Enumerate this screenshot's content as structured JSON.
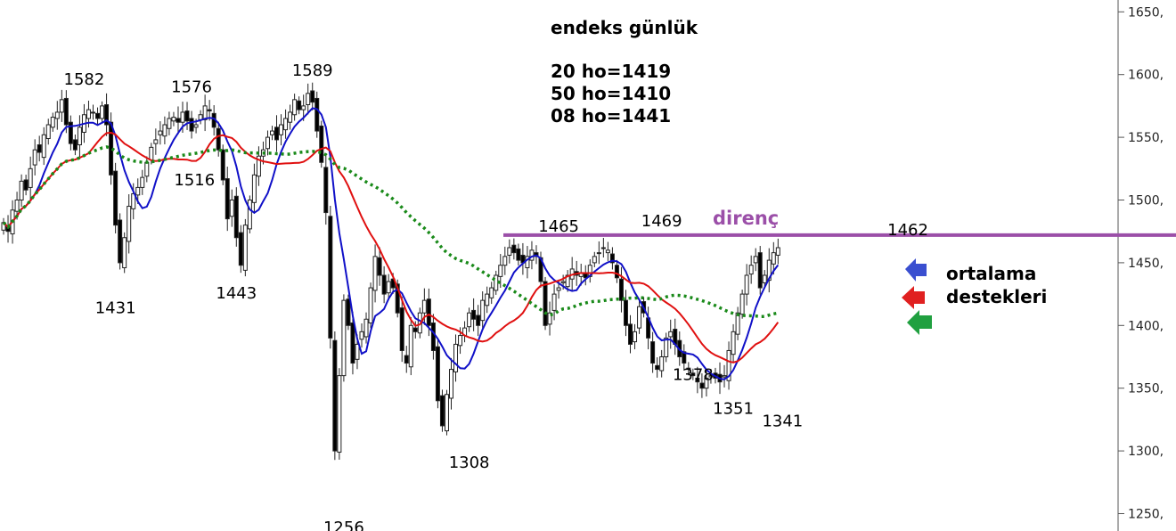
{
  "chart_data": {
    "type": "candlestick",
    "title": "endeks günlük",
    "info_lines": [
      "20 ho=1419",
      "50 ho=1410",
      "08 ho=1441"
    ],
    "ylim": [
      1244,
      1662
    ],
    "y_ticks": [
      1250,
      1300,
      1350,
      1400,
      1450,
      1500,
      1550,
      1600,
      1650
    ],
    "y_tick_labels": [
      "1250,",
      "1300,",
      "1350,",
      "1400,",
      "1450,",
      "1500,",
      "1550,",
      "1600,",
      "1650,"
    ],
    "resistance": {
      "label": "direnç",
      "value": 1472,
      "color": "#9b4fa8"
    },
    "support_label": [
      "ortalama",
      "destekleri"
    ],
    "annotations": [
      {
        "text": "1582",
        "x": 18,
        "y": 1582,
        "pos": "above"
      },
      {
        "text": "1576",
        "x": 42,
        "y": 1576,
        "pos": "above"
      },
      {
        "text": "1589",
        "x": 69,
        "y": 1589,
        "pos": "above"
      },
      {
        "text": "1516",
        "x": 48,
        "y": 1516,
        "pos": "left"
      },
      {
        "text": "1431",
        "x": 25,
        "y": 1431,
        "pos": "below"
      },
      {
        "text": "1443",
        "x": 52,
        "y": 1443,
        "pos": "below"
      },
      {
        "text": "1256",
        "x": 76,
        "y": 1256,
        "pos": "below"
      },
      {
        "text": "1308",
        "x": 104,
        "y": 1308,
        "pos": "below"
      },
      {
        "text": "1465",
        "x": 124,
        "y": 1465,
        "pos": "above"
      },
      {
        "text": "1469",
        "x": 147,
        "y": 1469,
        "pos": "above"
      },
      {
        "text": "1378",
        "x": 154,
        "y": 1378,
        "pos": "below"
      },
      {
        "text": "1351",
        "x": 163,
        "y": 1351,
        "pos": "below"
      },
      {
        "text": "1341",
        "x": 174,
        "y": 1341,
        "pos": "below"
      },
      {
        "text": "1462",
        "x": 202,
        "y": 1462,
        "pos": "above"
      }
    ],
    "series": [
      {
        "name": "08 ho",
        "color": "#1010c8",
        "style": "solid"
      },
      {
        "name": "20 ho",
        "color": "#e01010",
        "style": "solid"
      },
      {
        "name": "50 ho",
        "color": "#1a8a1a",
        "style": "dotted"
      }
    ],
    "arrow_colors": [
      "#3a4fd0",
      "#e02020",
      "#20a040"
    ],
    "close": [
      1482,
      1475,
      1492,
      1500,
      1515,
      1508,
      1525,
      1540,
      1538,
      1552,
      1560,
      1566,
      1570,
      1580,
      1560,
      1545,
      1540,
      1558,
      1568,
      1572,
      1570,
      1565,
      1575,
      1560,
      1520,
      1480,
      1450,
      1470,
      1495,
      1505,
      1510,
      1518,
      1530,
      1542,
      1548,
      1555,
      1560,
      1565,
      1566,
      1562,
      1570,
      1563,
      1555,
      1560,
      1568,
      1575,
      1571,
      1558,
      1540,
      1516,
      1485,
      1500,
      1470,
      1448,
      1480,
      1500,
      1520,
      1535,
      1540,
      1550,
      1555,
      1548,
      1560,
      1565,
      1570,
      1580,
      1572,
      1575,
      1585,
      1578,
      1555,
      1530,
      1490,
      1390,
      1300,
      1360,
      1420,
      1400,
      1370,
      1385,
      1395,
      1405,
      1430,
      1455,
      1440,
      1425,
      1435,
      1430,
      1410,
      1380,
      1370,
      1400,
      1395,
      1410,
      1420,
      1400,
      1380,
      1340,
      1320,
      1345,
      1365,
      1385,
      1392,
      1398,
      1410,
      1405,
      1400,
      1420,
      1425,
      1430,
      1440,
      1448,
      1455,
      1462,
      1458,
      1452,
      1450,
      1455,
      1460,
      1455,
      1435,
      1400,
      1410,
      1425,
      1430,
      1435,
      1440,
      1445,
      1440,
      1442,
      1438,
      1448,
      1455,
      1458,
      1462,
      1460,
      1450,
      1438,
      1420,
      1400,
      1385,
      1395,
      1415,
      1410,
      1390,
      1370,
      1365,
      1375,
      1390,
      1395,
      1385,
      1375,
      1370,
      1365,
      1360,
      1355,
      1350,
      1358,
      1360,
      1358,
      1355,
      1360,
      1380,
      1395,
      1410,
      1425,
      1440,
      1448,
      1455,
      1430,
      1440,
      1452,
      1458,
      1462
    ]
  }
}
